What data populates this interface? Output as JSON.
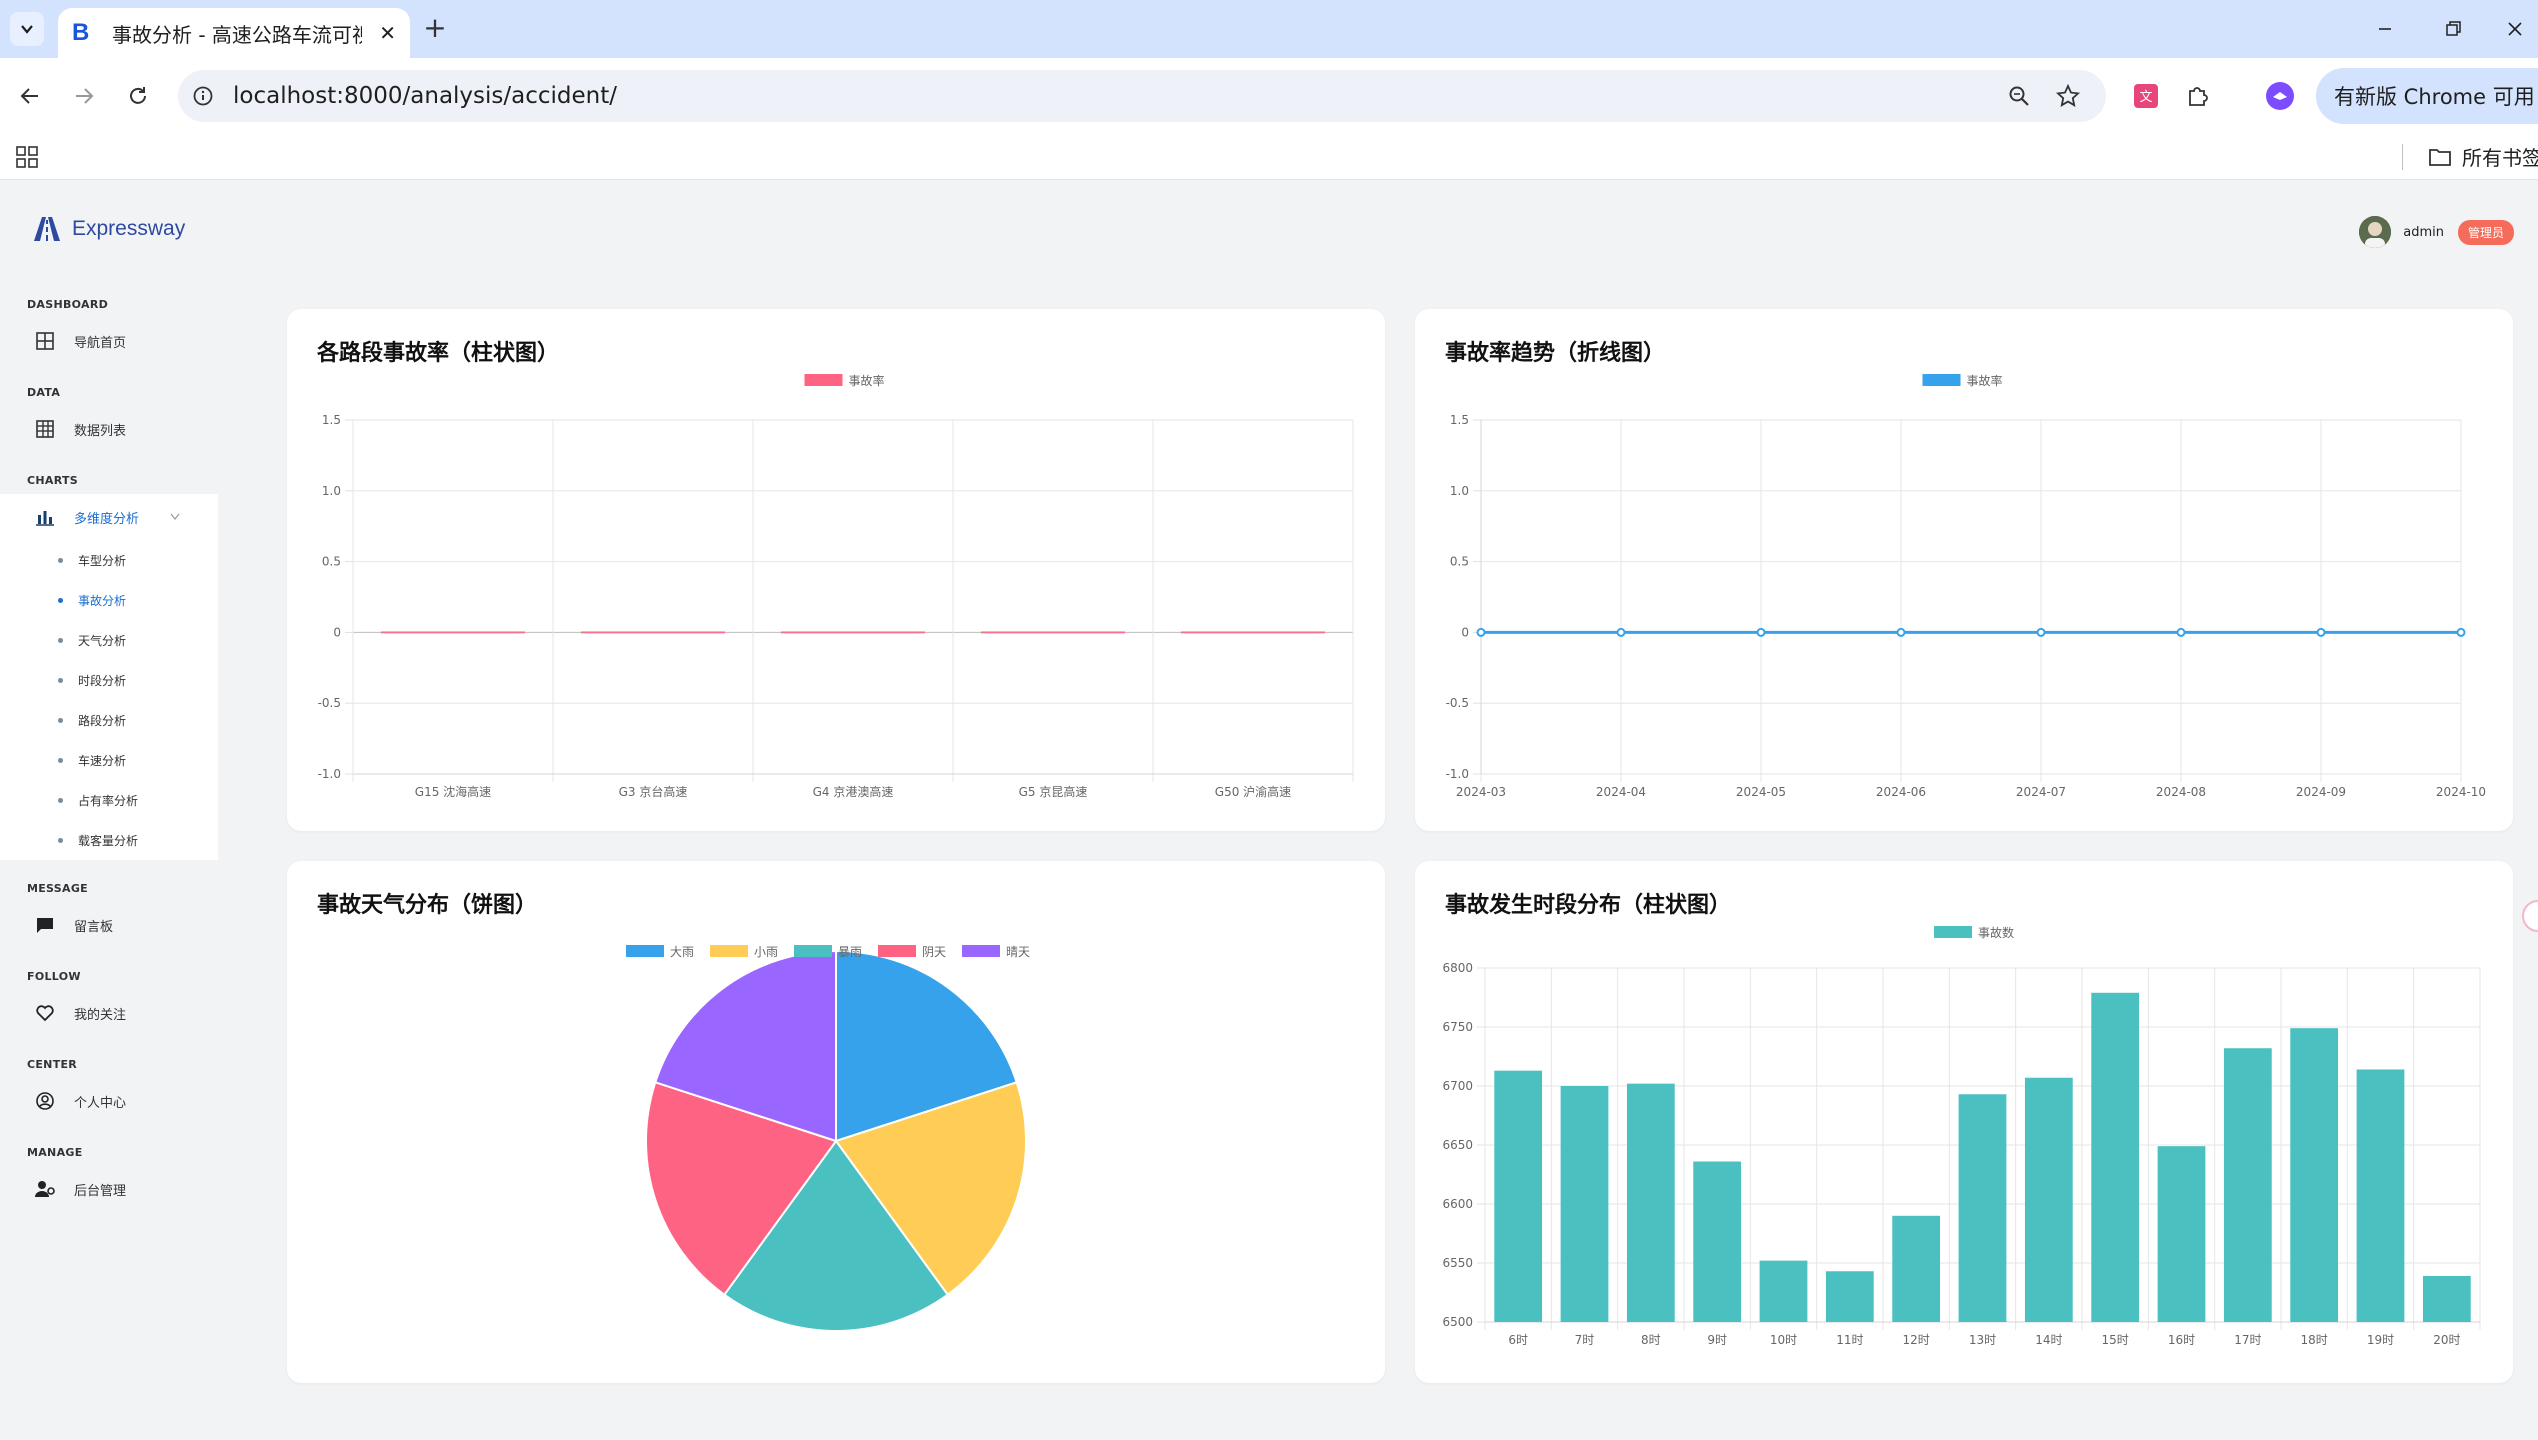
{
  "browser": {
    "tab_title": "事故分析 - 高速公路车流可视化",
    "url_host": "localhost",
    "url_rest": ":8000/analysis/accident/",
    "update_button": "有新版 Chrome 可用",
    "all_bookmarks": "所有书签",
    "favicon_letter": "B"
  },
  "header": {
    "logo_text": "Expressway",
    "user_name": "admin",
    "role_badge": "管理员"
  },
  "sidebar": {
    "sections": [
      {
        "title": "DASHBOARD",
        "items": [
          {
            "label": "导航首页",
            "icon": "grid-icon"
          }
        ]
      },
      {
        "title": "DATA",
        "items": [
          {
            "label": "数据列表",
            "icon": "table-icon"
          }
        ]
      },
      {
        "title": "CHARTS",
        "items": [
          {
            "label": "多维度分析",
            "icon": "bar-chart-icon",
            "expanded": true
          }
        ]
      },
      {
        "title": "MESSAGE",
        "items": [
          {
            "label": "留言板",
            "icon": "chat-icon"
          }
        ]
      },
      {
        "title": "FOLLOW",
        "items": [
          {
            "label": "我的关注",
            "icon": "heart-icon"
          }
        ]
      },
      {
        "title": "CENTER",
        "items": [
          {
            "label": "个人中心",
            "icon": "user-circle-icon"
          }
        ]
      },
      {
        "title": "MANAGE",
        "items": [
          {
            "label": "后台管理",
            "icon": "admin-icon"
          }
        ]
      }
    ],
    "sub_items": [
      "车型分析",
      "事故分析",
      "天气分析",
      "时段分析",
      "路段分析",
      "车速分析",
      "占有率分析",
      "载客量分析"
    ],
    "active_sub": "事故分析"
  },
  "colors": {
    "accent": "#1a6fd0",
    "pink": "#ff6384",
    "blue": "#36a2eb",
    "yellow": "#ffcd56",
    "teal": "#4bc0c0",
    "purple": "#9966ff",
    "badge": "#f56c5a"
  },
  "cards": {
    "c1_title": "各路段事故率（柱状图）",
    "c2_title": "事故率趋势（折线图）",
    "c3_title": "事故天气分布（饼图）",
    "c4_title": "事故发生时段分布（柱状图）"
  },
  "chart_data": [
    {
      "type": "bar",
      "title": "各路段事故率（柱状图）",
      "categories": [
        "G15 沈海高速",
        "G3 京台高速",
        "G4 京港澳高速",
        "G5 京昆高速",
        "G50 沪渝高速"
      ],
      "series": [
        {
          "name": "事故率",
          "values": [
            0,
            0,
            0,
            0,
            0
          ],
          "color": "#ff6384"
        }
      ],
      "ylim": [
        -1.0,
        1.5
      ],
      "yticks": [
        "1.5",
        "1.0",
        "0.5",
        "0",
        "-0.5",
        "-1.0"
      ],
      "legend": "top-center",
      "grid": true
    },
    {
      "type": "line",
      "title": "事故率趋势（折线图）",
      "x": [
        "2024-03",
        "2024-04",
        "2024-05",
        "2024-06",
        "2024-07",
        "2024-08",
        "2024-09",
        "2024-10"
      ],
      "series": [
        {
          "name": "事故率",
          "values": [
            0,
            0,
            0,
            0,
            0,
            0,
            0,
            0
          ],
          "color": "#36a2eb"
        }
      ],
      "ylim": [
        -1.0,
        1.5
      ],
      "yticks": [
        "1.5",
        "1.0",
        "0.5",
        "0",
        "-0.5",
        "-1.0"
      ],
      "legend": "top-center",
      "grid": true
    },
    {
      "type": "pie",
      "title": "事故天气分布（饼图）",
      "labels": [
        "大雨",
        "小雨",
        "暴雨",
        "阴天",
        "晴天"
      ],
      "values": [
        20,
        20,
        20,
        20,
        20
      ],
      "colors": [
        "#36a2eb",
        "#ffcd56",
        "#4bc0c0",
        "#ff6384",
        "#9966ff"
      ],
      "legend": "top-center"
    },
    {
      "type": "bar",
      "title": "事故发生时段分布（柱状图）",
      "categories": [
        "6时",
        "7时",
        "8时",
        "9时",
        "10时",
        "11时",
        "12时",
        "13时",
        "14时",
        "15时",
        "16时",
        "17时",
        "18时",
        "19时",
        "20时"
      ],
      "series": [
        {
          "name": "事故数",
          "values": [
            6713,
            6700,
            6702,
            6636,
            6552,
            6543,
            6590,
            6693,
            6707,
            6779,
            6649,
            6732,
            6749,
            6714,
            6539
          ],
          "color": "#4bc0c0"
        }
      ],
      "ylim": [
        6500,
        6800
      ],
      "yticks": [
        "6800",
        "6750",
        "6700",
        "6650",
        "6600",
        "6550",
        "6500"
      ],
      "legend": "top-center",
      "grid": true
    }
  ]
}
